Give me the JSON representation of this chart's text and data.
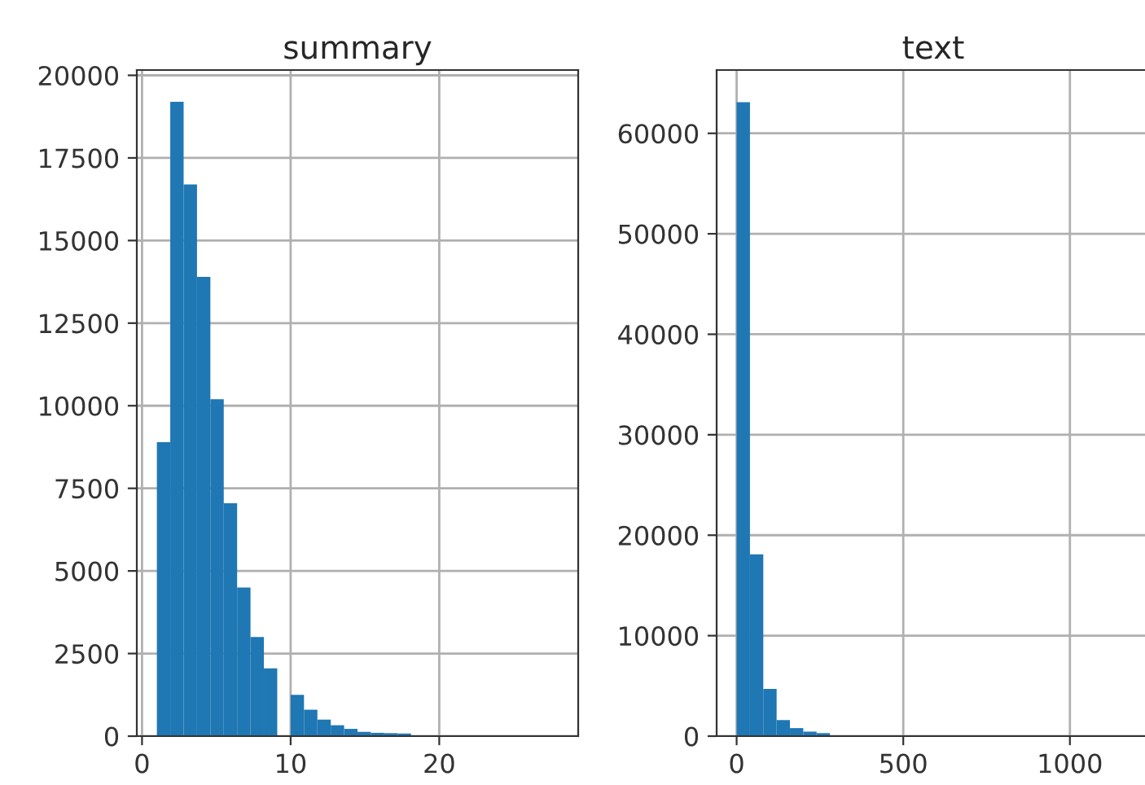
{
  "chart_data": [
    {
      "type": "histogram",
      "title": "summary",
      "color": "#1f77b4",
      "grid": true,
      "bins": [
        1,
        1.9,
        2.8,
        3.7,
        4.6,
        5.5,
        6.4,
        7.3,
        8.2,
        9.1,
        10,
        10.9,
        11.8,
        12.7,
        13.6,
        14.5,
        15.4,
        16.3,
        17.2,
        18.1,
        19,
        19.9,
        20.8,
        21.7,
        22.6,
        23.5,
        24.4,
        25.3,
        26.2,
        27.1,
        28
      ],
      "values": [
        8900,
        19200,
        16700,
        13900,
        10200,
        7050,
        4500,
        3000,
        2050,
        0,
        1250,
        800,
        500,
        330,
        220,
        130,
        100,
        90,
        80,
        0,
        0,
        0,
        0,
        0,
        0,
        0,
        0,
        0,
        0,
        0
      ],
      "xlim": [
        -0.35,
        29.35
      ],
      "ylim": [
        0,
        20160
      ],
      "xticks": [
        0,
        10,
        20
      ],
      "yticks": [
        0,
        2500,
        5000,
        7500,
        10000,
        12500,
        15000,
        17500,
        20000
      ]
    },
    {
      "type": "histogram",
      "title": "text",
      "color": "#1f77b4",
      "grid": true,
      "bins": [
        0,
        40,
        80,
        120,
        160,
        200,
        240,
        280,
        320,
        360,
        400,
        440,
        480,
        520,
        560,
        600,
        640,
        680,
        720,
        760,
        800,
        840,
        880,
        920,
        960,
        1000,
        1040,
        1080,
        1120,
        1160,
        1200
      ],
      "values": [
        63100,
        18100,
        4700,
        1600,
        800,
        450,
        300,
        0,
        0,
        0,
        0,
        0,
        0,
        0,
        0,
        0,
        0,
        0,
        0,
        0,
        0,
        0,
        0,
        0,
        0,
        0,
        0,
        0,
        0,
        0
      ],
      "xlim": [
        -60,
        1240
      ],
      "ylim": [
        0,
        66300
      ],
      "xticks": [
        0,
        500,
        1000
      ],
      "yticks": [
        0,
        10000,
        20000,
        30000,
        40000,
        50000,
        60000
      ]
    }
  ]
}
